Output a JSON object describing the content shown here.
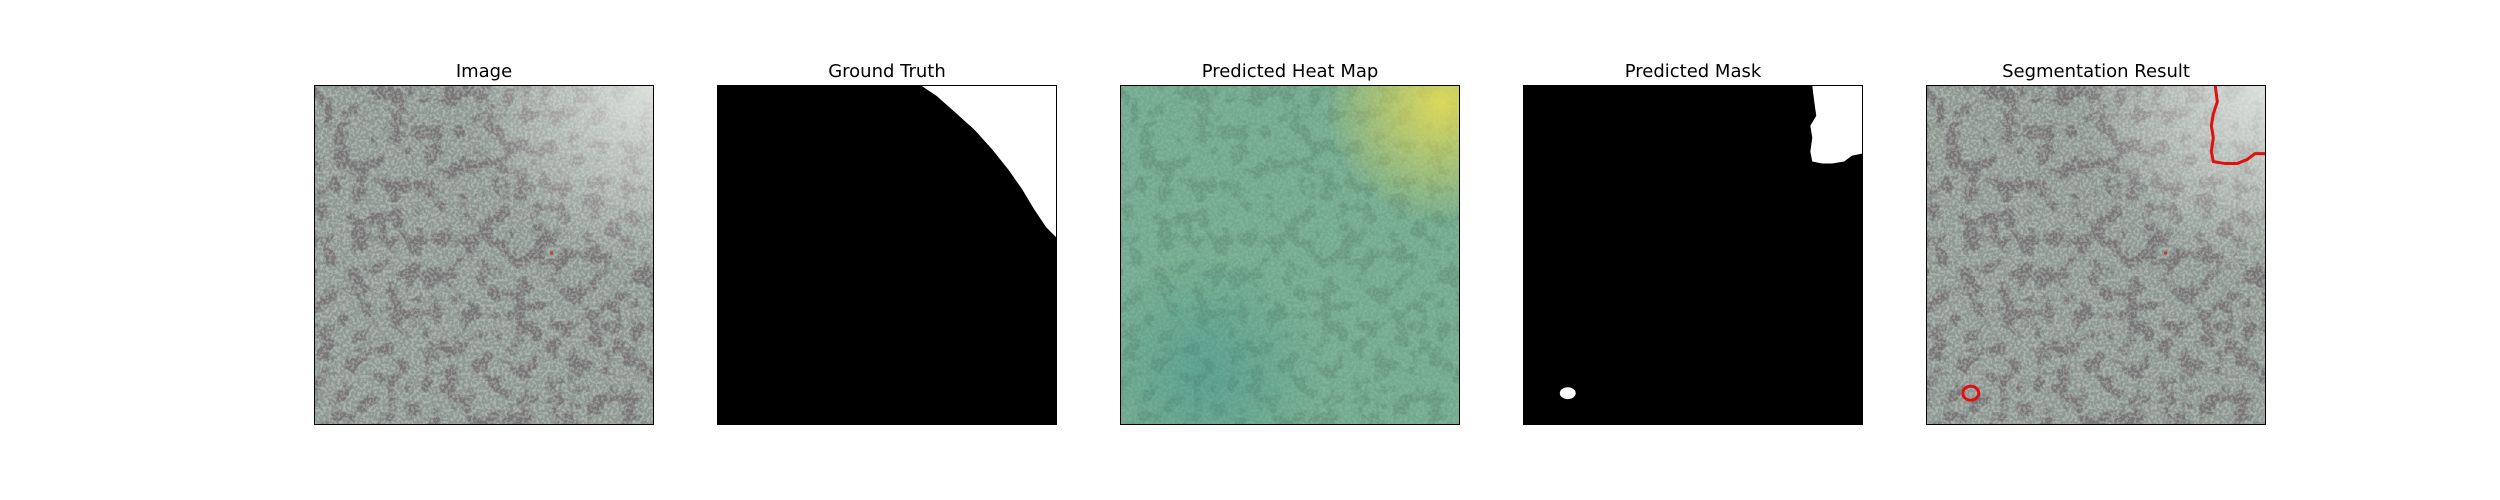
{
  "panels": [
    {
      "title": "Image"
    },
    {
      "title": "Ground Truth"
    },
    {
      "title": "Predicted Heat Map"
    },
    {
      "title": "Predicted Mask"
    },
    {
      "title": "Segmentation Result"
    }
  ],
  "colors": {
    "texture_base": "#8f9892",
    "texture_dark": "#2d2d2d",
    "mask_background": "#000000",
    "mask_foreground": "#ffffff",
    "heat_overlay": "#5fb98a",
    "heat_hot": "#f4e24e",
    "heat_cool": "#2a8a8f",
    "contour": "#e01010"
  }
}
